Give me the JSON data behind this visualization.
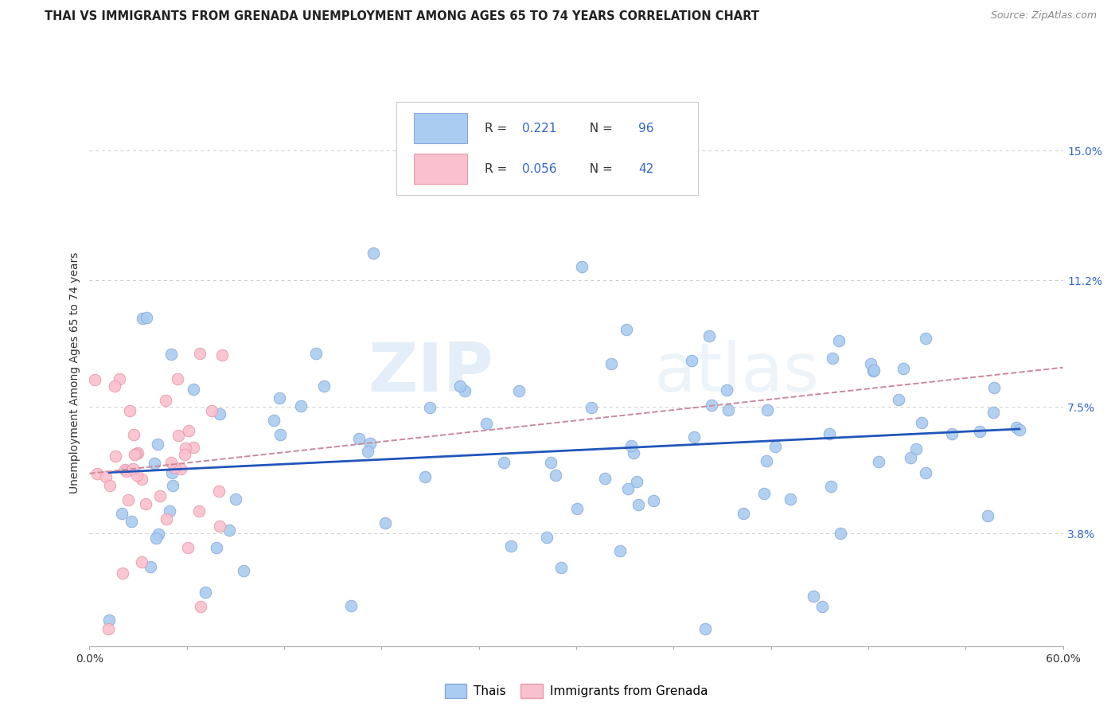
{
  "title": "THAI VS IMMIGRANTS FROM GRENADA UNEMPLOYMENT AMONG AGES 65 TO 74 YEARS CORRELATION CHART",
  "source": "Source: ZipAtlas.com",
  "ylabel": "Unemployment Among Ages 65 to 74 years",
  "ytick_values": [
    3.8,
    7.5,
    11.2,
    15.0
  ],
  "xmin": 0.0,
  "xmax": 60.0,
  "ymin": 0.5,
  "ymax": 16.5,
  "thai_color": "#aaccf0",
  "thai_edge_color": "#88aadd",
  "grenada_color": "#f9c0ce",
  "grenada_edge_color": "#e899aa",
  "trend_thai_color": "#2255bb",
  "trend_grenada_color": "#cc8899",
  "R_thai": "0.221",
  "N_thai": "96",
  "R_grenada": "0.056",
  "N_grenada": "42",
  "legend_label_thai": "Thais",
  "legend_label_grenada": "Immigrants from Grenada",
  "watermark_zip": "ZIP",
  "watermark_atlas": "atlas",
  "legend_text_color": "#3366cc",
  "title_fontsize": 10.5,
  "source_fontsize": 9,
  "axis_label_fontsize": 10,
  "legend_fontsize": 11
}
